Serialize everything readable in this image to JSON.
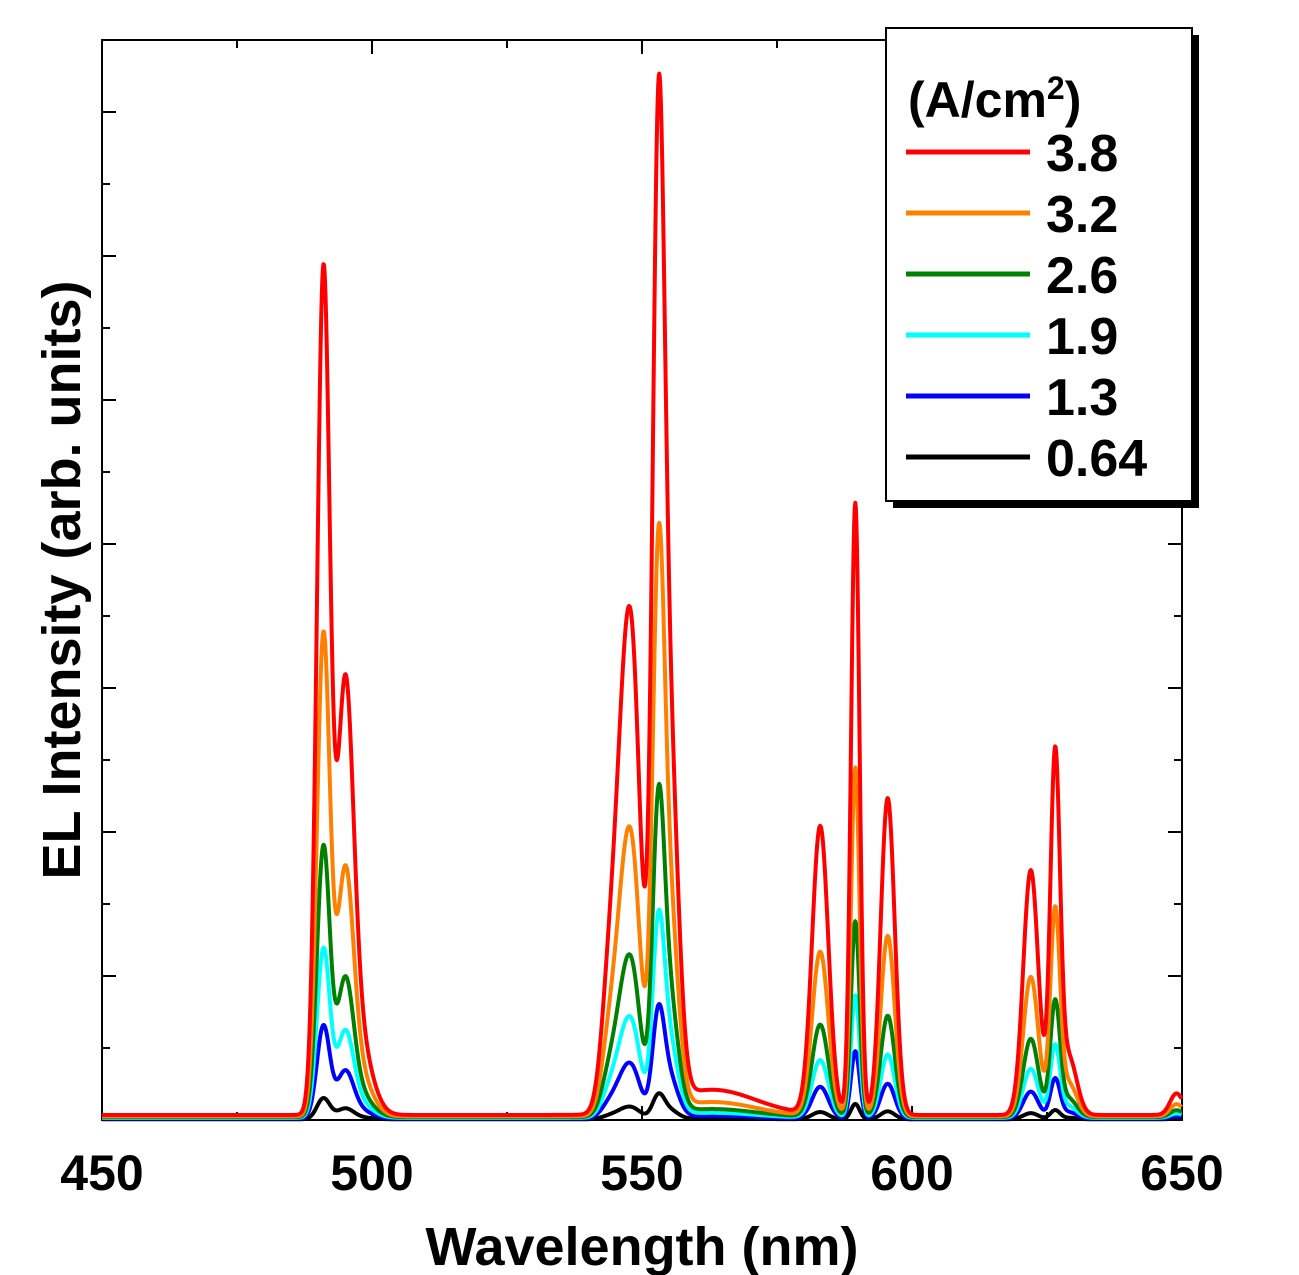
{
  "chart_data": {
    "type": "line",
    "xlabel": "Wavelength (nm)",
    "ylabel": "EL Intensity (arb. units)",
    "xlim": [
      450,
      650
    ],
    "ylim": [
      0,
      15
    ],
    "x_ticks": [
      450,
      500,
      550,
      600,
      650
    ],
    "x_tick_labels": [
      "450",
      "500",
      "550",
      "600",
      "650"
    ],
    "y_tick_labels_shown": false,
    "grid": false,
    "legend": {
      "title": "(A/cm",
      "title_sup": "2",
      "title_end": ")",
      "placement": "top-right"
    },
    "series": [
      {
        "name": "3.8",
        "color": "#ff0000",
        "scale": 1.0,
        "baseline": 0.07,
        "peaks": [
          {
            "x": 491.0,
            "y": 11.6,
            "w": 1.2
          },
          {
            "x": 495.0,
            "y": 5.2,
            "w": 1.5
          },
          {
            "x": 497.0,
            "y": 1.2,
            "w": 2.5
          },
          {
            "x": 544.0,
            "y": 1.8,
            "w": 1.5
          },
          {
            "x": 546.5,
            "y": 3.8,
            "w": 1.5
          },
          {
            "x": 548.5,
            "y": 4.8,
            "w": 1.5
          },
          {
            "x": 553.0,
            "y": 11.8,
            "w": 1.1
          },
          {
            "x": 555.0,
            "y": 5.0,
            "w": 1.6
          },
          {
            "x": 563.0,
            "y": 0.35,
            "w": 8.0
          },
          {
            "x": 583.0,
            "y": 4.0,
            "w": 1.5
          },
          {
            "x": 589.5,
            "y": 8.5,
            "w": 0.8
          },
          {
            "x": 595.5,
            "y": 4.4,
            "w": 1.3
          },
          {
            "x": 622.0,
            "y": 3.4,
            "w": 1.4
          },
          {
            "x": 626.5,
            "y": 4.9,
            "w": 0.9
          },
          {
            "x": 629.0,
            "y": 0.8,
            "w": 1.5
          },
          {
            "x": 649.0,
            "y": 0.3,
            "w": 1.2
          }
        ]
      },
      {
        "name": "3.2",
        "color": "#ff8000",
        "scale": 0.57,
        "baseline": 0.05
      },
      {
        "name": "2.6",
        "color": "#008000",
        "scale": 0.32,
        "baseline": 0.04
      },
      {
        "name": "1.9",
        "color": "#00ffff",
        "scale": 0.2,
        "baseline": 0.03
      },
      {
        "name": "1.3",
        "color": "#0000ff",
        "scale": 0.11,
        "baseline": 0.02
      },
      {
        "name": "0.64",
        "color": "#000000",
        "scale": 0.025,
        "baseline": 0.01
      }
    ]
  }
}
